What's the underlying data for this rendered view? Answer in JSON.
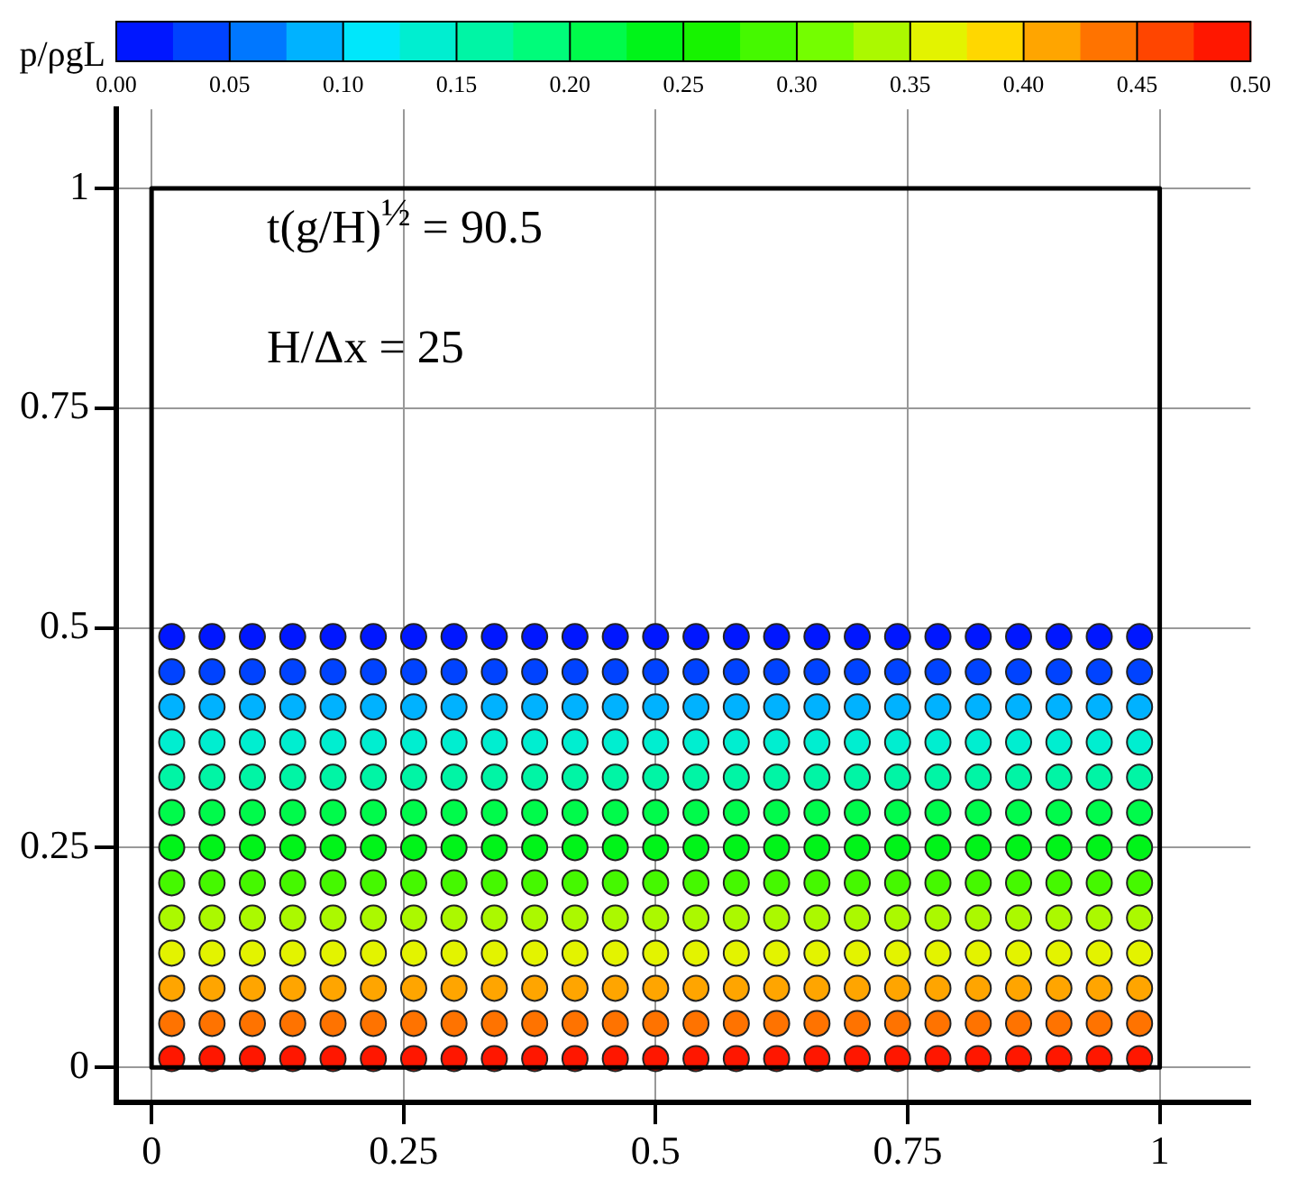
{
  "chart_data": {
    "type": "scatter",
    "clabel": "p/ρgL",
    "annotations": [
      "t(g/H)$^{½}$ = 90.5",
      "H/Δx = 25"
    ],
    "x": [
      0.02,
      0.06,
      0.1,
      0.14,
      0.18,
      0.22,
      0.26,
      0.3,
      0.34,
      0.38,
      0.42,
      0.46,
      0.5,
      0.54,
      0.58,
      0.62,
      0.66,
      0.7,
      0.74,
      0.78,
      0.82,
      0.86,
      0.9,
      0.94,
      0.98
    ],
    "series": [
      {
        "values": [
          0.49,
          0.49,
          0.49,
          0.49,
          0.49,
          0.49,
          0.49,
          0.49,
          0.49,
          0.49,
          0.49,
          0.49,
          0.49,
          0.49,
          0.49,
          0.49,
          0.49,
          0.49,
          0.49,
          0.49,
          0.49,
          0.49,
          0.49,
          0.49,
          0.49
        ],
        "cvalues": [
          0.0125,
          0.0125,
          0.0125,
          0.0125,
          0.0125,
          0.0125,
          0.0125,
          0.0125,
          0.0125,
          0.0125,
          0.0125,
          0.0125,
          0.0125,
          0.0125,
          0.0125,
          0.0125,
          0.0125,
          0.0125,
          0.0125,
          0.0125,
          0.0125,
          0.0125,
          0.0125,
          0.0125,
          0.0125
        ]
      },
      {
        "values": [
          0.45,
          0.45,
          0.45,
          0.45,
          0.45,
          0.45,
          0.45,
          0.45,
          0.45,
          0.45,
          0.45,
          0.45,
          0.45,
          0.45,
          0.45,
          0.45,
          0.45,
          0.45,
          0.45,
          0.45,
          0.45,
          0.45,
          0.45,
          0.45,
          0.45
        ],
        "cvalues": [
          0.0375,
          0.0375,
          0.0375,
          0.0375,
          0.0375,
          0.0375,
          0.0375,
          0.0375,
          0.0375,
          0.0375,
          0.0375,
          0.0375,
          0.0375,
          0.0375,
          0.0375,
          0.0375,
          0.0375,
          0.0375,
          0.0375,
          0.0375,
          0.0375,
          0.0375,
          0.0375,
          0.0375,
          0.0375
        ]
      },
      {
        "values": [
          0.41,
          0.41,
          0.41,
          0.41,
          0.41,
          0.41,
          0.41,
          0.41,
          0.41,
          0.41,
          0.41,
          0.41,
          0.41,
          0.41,
          0.41,
          0.41,
          0.41,
          0.41,
          0.41,
          0.41,
          0.41,
          0.41,
          0.41,
          0.41,
          0.41
        ],
        "cvalues": [
          0.0875,
          0.0875,
          0.0875,
          0.0875,
          0.0875,
          0.0875,
          0.0875,
          0.0875,
          0.0875,
          0.0875,
          0.0875,
          0.0875,
          0.0875,
          0.0875,
          0.0875,
          0.0875,
          0.0875,
          0.0875,
          0.0875,
          0.0875,
          0.0875,
          0.0875,
          0.0875,
          0.0875,
          0.0875
        ]
      },
      {
        "values": [
          0.37,
          0.37,
          0.37,
          0.37,
          0.37,
          0.37,
          0.37,
          0.37,
          0.37,
          0.37,
          0.37,
          0.37,
          0.37,
          0.37,
          0.37,
          0.37,
          0.37,
          0.37,
          0.37,
          0.37,
          0.37,
          0.37,
          0.37,
          0.37,
          0.37
        ],
        "cvalues": [
          0.1375,
          0.1375,
          0.1375,
          0.1375,
          0.1375,
          0.1375,
          0.1375,
          0.1375,
          0.1375,
          0.1375,
          0.1375,
          0.1375,
          0.1375,
          0.1375,
          0.1375,
          0.1375,
          0.1375,
          0.1375,
          0.1375,
          0.1375,
          0.1375,
          0.1375,
          0.1375,
          0.1375,
          0.1375
        ]
      },
      {
        "values": [
          0.33,
          0.33,
          0.33,
          0.33,
          0.33,
          0.33,
          0.33,
          0.33,
          0.33,
          0.33,
          0.33,
          0.33,
          0.33,
          0.33,
          0.33,
          0.33,
          0.33,
          0.33,
          0.33,
          0.33,
          0.33,
          0.33,
          0.33,
          0.33,
          0.33
        ],
        "cvalues": [
          0.1625,
          0.1625,
          0.1625,
          0.1625,
          0.1625,
          0.1625,
          0.1625,
          0.1625,
          0.1625,
          0.1625,
          0.1625,
          0.1625,
          0.1625,
          0.1625,
          0.1625,
          0.1625,
          0.1625,
          0.1625,
          0.1625,
          0.1625,
          0.1625,
          0.1625,
          0.1625,
          0.1625,
          0.1625
        ]
      },
      {
        "values": [
          0.29,
          0.29,
          0.29,
          0.29,
          0.29,
          0.29,
          0.29,
          0.29,
          0.29,
          0.29,
          0.29,
          0.29,
          0.29,
          0.29,
          0.29,
          0.29,
          0.29,
          0.29,
          0.29,
          0.29,
          0.29,
          0.29,
          0.29,
          0.29,
          0.29
        ],
        "cvalues": [
          0.2125,
          0.2125,
          0.2125,
          0.2125,
          0.2125,
          0.2125,
          0.2125,
          0.2125,
          0.2125,
          0.2125,
          0.2125,
          0.2125,
          0.2125,
          0.2125,
          0.2125,
          0.2125,
          0.2125,
          0.2125,
          0.2125,
          0.2125,
          0.2125,
          0.2125,
          0.2125,
          0.2125,
          0.2125
        ]
      },
      {
        "values": [
          0.25,
          0.25,
          0.25,
          0.25,
          0.25,
          0.25,
          0.25,
          0.25,
          0.25,
          0.25,
          0.25,
          0.25,
          0.25,
          0.25,
          0.25,
          0.25,
          0.25,
          0.25,
          0.25,
          0.25,
          0.25,
          0.25,
          0.25,
          0.25,
          0.25
        ],
        "cvalues": [
          0.2375,
          0.2375,
          0.2375,
          0.2375,
          0.2375,
          0.2375,
          0.2375,
          0.2375,
          0.2375,
          0.2375,
          0.2375,
          0.2375,
          0.2375,
          0.2375,
          0.2375,
          0.2375,
          0.2375,
          0.2375,
          0.2375,
          0.2375,
          0.2375,
          0.2375,
          0.2375,
          0.2375,
          0.2375
        ]
      },
      {
        "values": [
          0.21,
          0.21,
          0.21,
          0.21,
          0.21,
          0.21,
          0.21,
          0.21,
          0.21,
          0.21,
          0.21,
          0.21,
          0.21,
          0.21,
          0.21,
          0.21,
          0.21,
          0.21,
          0.21,
          0.21,
          0.21,
          0.21,
          0.21,
          0.21,
          0.21
        ],
        "cvalues": [
          0.2875,
          0.2875,
          0.2875,
          0.2875,
          0.2875,
          0.2875,
          0.2875,
          0.2875,
          0.2875,
          0.2875,
          0.2875,
          0.2875,
          0.2875,
          0.2875,
          0.2875,
          0.2875,
          0.2875,
          0.2875,
          0.2875,
          0.2875,
          0.2875,
          0.2875,
          0.2875,
          0.2875,
          0.2875
        ]
      },
      {
        "values": [
          0.17,
          0.17,
          0.17,
          0.17,
          0.17,
          0.17,
          0.17,
          0.17,
          0.17,
          0.17,
          0.17,
          0.17,
          0.17,
          0.17,
          0.17,
          0.17,
          0.17,
          0.17,
          0.17,
          0.17,
          0.17,
          0.17,
          0.17,
          0.17,
          0.17
        ],
        "cvalues": [
          0.3375,
          0.3375,
          0.3375,
          0.3375,
          0.3375,
          0.3375,
          0.3375,
          0.3375,
          0.3375,
          0.3375,
          0.3375,
          0.3375,
          0.3375,
          0.3375,
          0.3375,
          0.3375,
          0.3375,
          0.3375,
          0.3375,
          0.3375,
          0.3375,
          0.3375,
          0.3375,
          0.3375,
          0.3375
        ]
      },
      {
        "values": [
          0.13,
          0.13,
          0.13,
          0.13,
          0.13,
          0.13,
          0.13,
          0.13,
          0.13,
          0.13,
          0.13,
          0.13,
          0.13,
          0.13,
          0.13,
          0.13,
          0.13,
          0.13,
          0.13,
          0.13,
          0.13,
          0.13,
          0.13,
          0.13,
          0.13
        ],
        "cvalues": [
          0.3625,
          0.3625,
          0.3625,
          0.3625,
          0.3625,
          0.3625,
          0.3625,
          0.3625,
          0.3625,
          0.3625,
          0.3625,
          0.3625,
          0.3625,
          0.3625,
          0.3625,
          0.3625,
          0.3625,
          0.3625,
          0.3625,
          0.3625,
          0.3625,
          0.3625,
          0.3625,
          0.3625,
          0.3625
        ]
      },
      {
        "values": [
          0.09,
          0.09,
          0.09,
          0.09,
          0.09,
          0.09,
          0.09,
          0.09,
          0.09,
          0.09,
          0.09,
          0.09,
          0.09,
          0.09,
          0.09,
          0.09,
          0.09,
          0.09,
          0.09,
          0.09,
          0.09,
          0.09,
          0.09,
          0.09,
          0.09
        ],
        "cvalues": [
          0.4125,
          0.4125,
          0.4125,
          0.4125,
          0.4125,
          0.4125,
          0.4125,
          0.4125,
          0.4125,
          0.4125,
          0.4125,
          0.4125,
          0.4125,
          0.4125,
          0.4125,
          0.4125,
          0.4125,
          0.4125,
          0.4125,
          0.4125,
          0.4125,
          0.4125,
          0.4125,
          0.4125,
          0.4125
        ]
      },
      {
        "values": [
          0.05,
          0.05,
          0.05,
          0.05,
          0.05,
          0.05,
          0.05,
          0.05,
          0.05,
          0.05,
          0.05,
          0.05,
          0.05,
          0.05,
          0.05,
          0.05,
          0.05,
          0.05,
          0.05,
          0.05,
          0.05,
          0.05,
          0.05,
          0.05,
          0.05
        ],
        "cvalues": [
          0.4375,
          0.4375,
          0.4375,
          0.4375,
          0.4375,
          0.4375,
          0.4375,
          0.4375,
          0.4375,
          0.4375,
          0.4375,
          0.4375,
          0.4375,
          0.4375,
          0.4375,
          0.4375,
          0.4375,
          0.4375,
          0.4375,
          0.4375,
          0.4375,
          0.4375,
          0.4375,
          0.4375,
          0.4375
        ]
      },
      {
        "values": [
          0.01,
          0.01,
          0.01,
          0.01,
          0.01,
          0.01,
          0.01,
          0.01,
          0.01,
          0.01,
          0.01,
          0.01,
          0.01,
          0.01,
          0.01,
          0.01,
          0.01,
          0.01,
          0.01,
          0.01,
          0.01,
          0.01,
          0.01,
          0.01,
          0.01
        ],
        "cvalues": [
          0.4875,
          0.4875,
          0.4875,
          0.4875,
          0.4875,
          0.4875,
          0.4875,
          0.4875,
          0.4875,
          0.4875,
          0.4875,
          0.4875,
          0.4875,
          0.4875,
          0.4875,
          0.4875,
          0.4875,
          0.4875,
          0.4875,
          0.4875,
          0.4875,
          0.4875,
          0.4875,
          0.4875,
          0.4875
        ]
      }
    ],
    "xlim": [
      -0.035,
      1.09
    ],
    "ylim": [
      -0.04,
      1.09
    ],
    "xticks": [
      {
        "value": 0,
        "label": "0"
      },
      {
        "value": 0.25,
        "label": "0.25"
      },
      {
        "value": 0.5,
        "label": "0.5"
      },
      {
        "value": 0.75,
        "label": "0.75"
      },
      {
        "value": 1,
        "label": "1"
      }
    ],
    "yticks": [
      {
        "value": 0,
        "label": "0"
      },
      {
        "value": 0.25,
        "label": "0.25"
      },
      {
        "value": 0.5,
        "label": "0.5"
      },
      {
        "value": 0.75,
        "label": "0.75"
      },
      {
        "value": 1,
        "label": "1"
      }
    ],
    "clim": [
      0,
      0.5
    ],
    "cticks": [
      {
        "value": 0,
        "label": "0.00"
      },
      {
        "value": 0.05,
        "label": "0.05"
      },
      {
        "value": 0.1,
        "label": "0.10"
      },
      {
        "value": 0.15,
        "label": "0.15"
      },
      {
        "value": 0.2,
        "label": "0.20"
      },
      {
        "value": 0.25,
        "label": "0.25"
      },
      {
        "value": 0.3,
        "label": "0.30"
      },
      {
        "value": 0.35,
        "label": "0.35"
      },
      {
        "value": 0.4,
        "label": "0.40"
      },
      {
        "value": 0.45,
        "label": "0.45"
      },
      {
        "value": 0.5,
        "label": "0.50"
      }
    ],
    "grid": true,
    "legend": false,
    "marker": "circle"
  }
}
